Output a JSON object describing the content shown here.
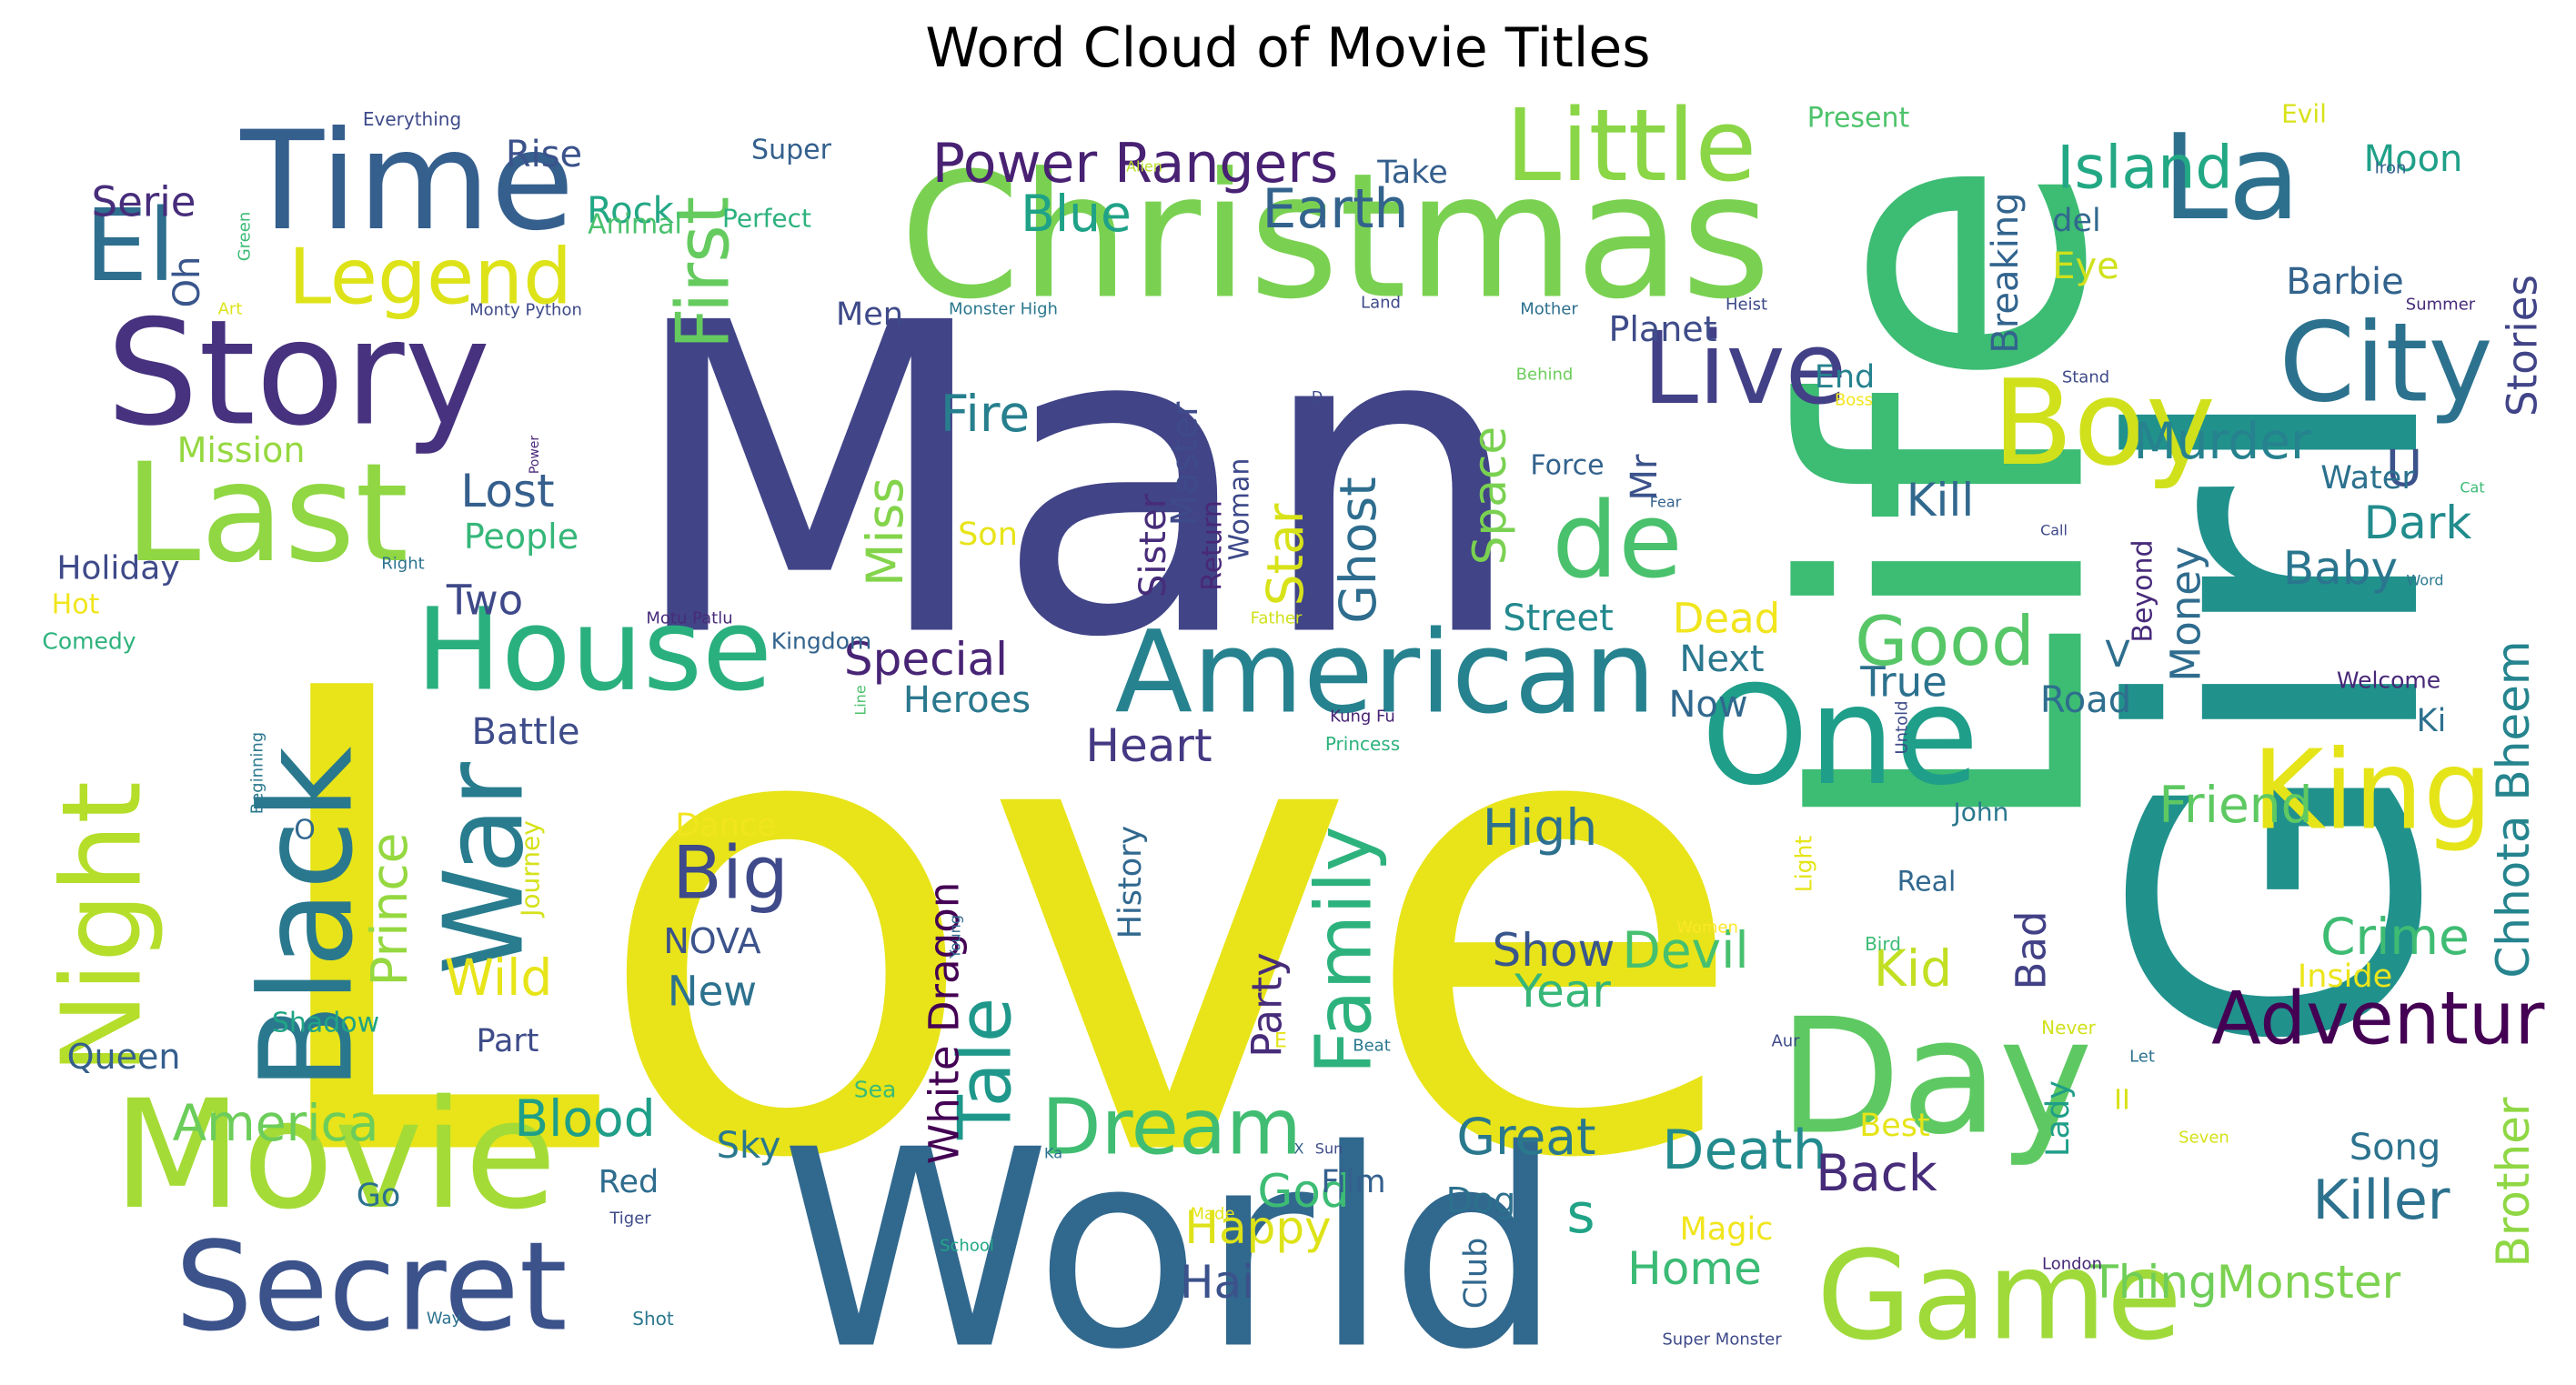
{
  "chart_data": {
    "type": "wordcloud",
    "title": "Word Cloud of Movie Titles",
    "words": [
      {
        "text": "Love",
        "color": "#e8e419"
      },
      {
        "text": "Man",
        "color": "#414487"
      },
      {
        "text": "Life",
        "color": "#3dbc74"
      },
      {
        "text": "Girl",
        "color": "#21918c"
      },
      {
        "text": "World",
        "color": "#31688e"
      },
      {
        "text": "Christmas",
        "color": "#7ad151"
      },
      {
        "text": "Time",
        "color": "#355f8d"
      },
      {
        "text": "Story",
        "color": "#46327e"
      },
      {
        "text": "Movie",
        "color": "#a5db36"
      },
      {
        "text": "Last",
        "color": "#90d743"
      },
      {
        "text": "Black",
        "color": "#2a788e"
      },
      {
        "text": "Secret",
        "color": "#3b528b"
      },
      {
        "text": "American",
        "color": "#26828e"
      },
      {
        "text": "House",
        "color": "#2ab07f"
      },
      {
        "text": "One",
        "color": "#1f9e89"
      },
      {
        "text": "Day",
        "color": "#5ec962"
      },
      {
        "text": "Game",
        "color": "#9fda3a"
      },
      {
        "text": "Little",
        "color": "#8bd646"
      },
      {
        "text": "La",
        "color": "#2d708e"
      },
      {
        "text": "City",
        "color": "#2c728e"
      },
      {
        "text": "Boy",
        "color": "#d0e11c"
      },
      {
        "text": "Night",
        "color": "#b5de2b"
      },
      {
        "text": "War",
        "color": "#287c8e"
      },
      {
        "text": "King",
        "color": "#e5e419"
      },
      {
        "text": "Live",
        "color": "#424086"
      },
      {
        "text": "El",
        "color": "#2e6e8e"
      },
      {
        "text": "de",
        "color": "#4ac16d"
      },
      {
        "text": "Legend",
        "color": "#dde318"
      },
      {
        "text": "Dream",
        "color": "#40bd72"
      },
      {
        "text": "Adventure",
        "color": "#440154"
      },
      {
        "text": "Family",
        "color": "#2db27d"
      },
      {
        "text": "Big",
        "color": "#3e4a89"
      },
      {
        "text": "Tale",
        "color": "#1f988b"
      },
      {
        "text": "Power Rangers",
        "color": "#482173"
      },
      {
        "text": "Good",
        "color": "#56c667"
      },
      {
        "text": "First",
        "color": "#65cb5e"
      },
      {
        "text": "Earth",
        "color": "#33638d"
      },
      {
        "text": "Blue",
        "color": "#1fa287"
      },
      {
        "text": "Island",
        "color": "#22a884"
      },
      {
        "text": "Chhota Bheem",
        "color": "#25848e"
      },
      {
        "text": "Death",
        "color": "#238a8d"
      },
      {
        "text": "Killer",
        "color": "#2c718e"
      },
      {
        "text": "Crime",
        "color": "#3fbc73"
      },
      {
        "text": "Brother",
        "color": "#8fd744"
      },
      {
        "text": "Blood",
        "color": "#1f9f88"
      },
      {
        "text": "Great",
        "color": "#2a788e"
      },
      {
        "text": "America",
        "color": "#6ccd5a"
      },
      {
        "text": "Prince",
        "color": "#95d840"
      },
      {
        "text": "Wild",
        "color": "#e7e419"
      },
      {
        "text": "Ghost",
        "color": "#2e6d8e"
      },
      {
        "text": "Star",
        "color": "#d8e219"
      },
      {
        "text": "Space",
        "color": "#7ad151"
      },
      {
        "text": "Fire",
        "color": "#277f8e"
      },
      {
        "text": "Miss",
        "color": "#84d44b"
      },
      {
        "text": "Murder",
        "color": "#26828e"
      },
      {
        "text": "Dark",
        "color": "#228c8d"
      },
      {
        "text": "Baby",
        "color": "#2a768e"
      },
      {
        "text": "Stories",
        "color": "#414487"
      },
      {
        "text": "Friend",
        "color": "#5ec962"
      },
      {
        "text": "Kid",
        "color": "#c2df23"
      },
      {
        "text": "Devil",
        "color": "#46c06f"
      },
      {
        "text": "Show",
        "color": "#39568c"
      },
      {
        "text": "Year",
        "color": "#36b677"
      },
      {
        "text": "High",
        "color": "#2d708e"
      },
      {
        "text": "Heart",
        "color": "#443983"
      },
      {
        "text": "Special",
        "color": "#482475"
      },
      {
        "text": "Back",
        "color": "#472c7a"
      },
      {
        "text": "Monster",
        "color": "#7cd250"
      },
      {
        "text": "Thing",
        "color": "#6ece58"
      },
      {
        "text": "Home",
        "color": "#3bbb75"
      },
      {
        "text": "Happy",
        "color": "#dde318"
      },
      {
        "text": "God",
        "color": "#3dbc74"
      },
      {
        "text": "Hai",
        "color": "#3b528b"
      },
      {
        "text": "Money",
        "color": "#2f6c8e"
      },
      {
        "text": "Bad",
        "color": "#424186"
      },
      {
        "text": "U",
        "color": "#3b528b"
      },
      {
        "text": "Kill",
        "color": "#31688e"
      },
      {
        "text": "Two",
        "color": "#3e4989"
      },
      {
        "text": "Lost",
        "color": "#355f8d"
      },
      {
        "text": "Moon",
        "color": "#1fa088"
      },
      {
        "text": "Rise",
        "color": "#3b528b"
      },
      {
        "text": "Rock",
        "color": "#22a785"
      },
      {
        "text": "Serie",
        "color": "#472d7b"
      },
      {
        "text": "Oh",
        "color": "#39568c"
      },
      {
        "text": "Mr",
        "color": "#3b528b"
      },
      {
        "text": "Dead",
        "color": "#f1e51d"
      },
      {
        "text": "Next",
        "color": "#2a788e"
      },
      {
        "text": "Now",
        "color": "#31688e"
      },
      {
        "text": "True",
        "color": "#2c718e"
      },
      {
        "text": "Road",
        "color": "#2e6e8e"
      },
      {
        "text": "Street",
        "color": "#23898e"
      },
      {
        "text": "Battle",
        "color": "#3e4c8a"
      },
      {
        "text": "Heroes",
        "color": "#2a788e"
      },
      {
        "text": "Planet",
        "color": "#3e4c8a"
      },
      {
        "text": "End",
        "color": "#26828e"
      },
      {
        "text": "Take",
        "color": "#355f8d"
      },
      {
        "text": "Barbie",
        "color": "#33638d"
      },
      {
        "text": "Eye",
        "color": "#d0e11c"
      },
      {
        "text": "Breaking",
        "color": "#32648e"
      },
      {
        "text": "del",
        "color": "#31688e"
      },
      {
        "text": "Water",
        "color": "#2c718e"
      },
      {
        "text": "Mission",
        "color": "#95d840"
      },
      {
        "text": "People",
        "color": "#35b779"
      },
      {
        "text": "Holiday",
        "color": "#3e4a89"
      },
      {
        "text": "Queen",
        "color": "#355f8d"
      },
      {
        "text": "Part",
        "color": "#3e4c8a"
      },
      {
        "text": "Red",
        "color": "#2e6d8e"
      },
      {
        "text": "Sky",
        "color": "#2a788e"
      },
      {
        "text": "Go",
        "color": "#2c728e"
      },
      {
        "text": "Film",
        "color": "#34608d"
      },
      {
        "text": "Dog",
        "color": "#2d708e"
      },
      {
        "text": "Club",
        "color": "#31688e"
      },
      {
        "text": "s",
        "color": "#20a386"
      },
      {
        "text": "Magic",
        "color": "#f1e51d"
      },
      {
        "text": "Best",
        "color": "#e5e419"
      },
      {
        "text": "Song",
        "color": "#2c728e"
      },
      {
        "text": "Lady",
        "color": "#1f9e89"
      },
      {
        "text": "Inside",
        "color": "#ece51b"
      },
      {
        "text": "Ki",
        "color": "#2d708e"
      },
      {
        "text": "Real",
        "color": "#31688e"
      },
      {
        "text": "John",
        "color": "#2a788e"
      },
      {
        "text": "NOVA",
        "color": "#3b528b"
      },
      {
        "text": "New",
        "color": "#2c728e"
      },
      {
        "text": "Dance",
        "color": "#f1e51d"
      },
      {
        "text": "Journey",
        "color": "#d5e21a"
      },
      {
        "text": "Party",
        "color": "#472c7a"
      },
      {
        "text": "History",
        "color": "#31688e"
      },
      {
        "text": "White Dragon",
        "color": "#440154"
      },
      {
        "text": "Sister",
        "color": "#472c7a"
      },
      {
        "text": "Master",
        "color": "#3e4a89"
      },
      {
        "text": "Return",
        "color": "#482878"
      },
      {
        "text": "Woman",
        "color": "#3e4989"
      },
      {
        "text": "Son",
        "color": "#e7e419"
      },
      {
        "text": "Men",
        "color": "#3e4a89"
      },
      {
        "text": "Perfect",
        "color": "#2db27d"
      },
      {
        "text": "Animal",
        "color": "#4ac16d"
      },
      {
        "text": "Super",
        "color": "#34608d"
      },
      {
        "text": "Present",
        "color": "#4ec36b"
      },
      {
        "text": "Evil",
        "color": "#d8e219"
      },
      {
        "text": "Force",
        "color": "#33638d"
      },
      {
        "text": "Beyond",
        "color": "#472a7a"
      },
      {
        "text": "V",
        "color": "#2e6e8e"
      },
      {
        "text": "Shadow",
        "color": "#20a486"
      },
      {
        "text": "Hot",
        "color": "#f1e51d"
      },
      {
        "text": "Comedy",
        "color": "#2db27d"
      },
      {
        "text": "O",
        "color": "#31688e"
      },
      {
        "text": "II",
        "color": "#d8e219"
      },
      {
        "text": "Kingdom",
        "color": "#33638d"
      },
      {
        "text": "Welcome",
        "color": "#472878"
      },
      {
        "text": "Everything",
        "color": "#3e4a89"
      },
      {
        "text": "Monty Python",
        "color": "#3e4a89"
      },
      {
        "text": "Alien",
        "color": "#b8de29"
      },
      {
        "text": "Green",
        "color": "#3bbb75"
      },
      {
        "text": "Art",
        "color": "#dde318"
      },
      {
        "text": "Monster High",
        "color": "#2a788e"
      },
      {
        "text": "Land",
        "color": "#3e4a89"
      },
      {
        "text": "Mother",
        "color": "#2d708e"
      },
      {
        "text": "Heist",
        "color": "#3e4a89"
      },
      {
        "text": "Iron",
        "color": "#34608d"
      },
      {
        "text": "Summer",
        "color": "#472c7a"
      },
      {
        "text": "Behind",
        "color": "#6ccd5a"
      },
      {
        "text": "Stand",
        "color": "#3e4989"
      },
      {
        "text": "Boss",
        "color": "#f1e51d"
      },
      {
        "text": "D",
        "color": "#3e4989"
      },
      {
        "text": "Fear",
        "color": "#34608d"
      },
      {
        "text": "Call",
        "color": "#3e4989"
      },
      {
        "text": "Cat",
        "color": "#3bbb75"
      },
      {
        "text": "Word",
        "color": "#2a788e"
      },
      {
        "text": "Right",
        "color": "#2c728e"
      },
      {
        "text": "Power",
        "color": "#482878"
      },
      {
        "text": "Motu Patlu",
        "color": "#472c7a"
      },
      {
        "text": "Father",
        "color": "#d0e11c"
      },
      {
        "text": "Kung Fu",
        "color": "#482475"
      },
      {
        "text": "Princess",
        "color": "#2db27d"
      },
      {
        "text": "Line",
        "color": "#4ac16d"
      },
      {
        "text": "Beginning",
        "color": "#2a788e"
      },
      {
        "text": "Untold",
        "color": "#3e4c8a"
      },
      {
        "text": "Light",
        "color": "#e5e419"
      },
      {
        "text": "Women",
        "color": "#fde725"
      },
      {
        "text": "Bird",
        "color": "#3bbb75"
      },
      {
        "text": "Young",
        "color": "#31688e"
      },
      {
        "text": "E",
        "color": "#e5e419"
      },
      {
        "text": "Beat",
        "color": "#2a788e"
      },
      {
        "text": "Sea",
        "color": "#3bbb75"
      },
      {
        "text": "Ka",
        "color": "#2c718e"
      },
      {
        "text": "X",
        "color": "#34608d"
      },
      {
        "text": "Sun",
        "color": "#3e4c8a"
      },
      {
        "text": "Made",
        "color": "#e5e419"
      },
      {
        "text": "School",
        "color": "#22a785"
      },
      {
        "text": "Tiger",
        "color": "#3e4c8a"
      },
      {
        "text": "Way",
        "color": "#2c728e"
      },
      {
        "text": "Shot",
        "color": "#2a788e"
      },
      {
        "text": "Super Monster",
        "color": "#3e4989"
      },
      {
        "text": "London",
        "color": "#472878"
      },
      {
        "text": "Never",
        "color": "#d0e11c"
      },
      {
        "text": "Aur",
        "color": "#3e4a89"
      },
      {
        "text": "Let",
        "color": "#2c728e"
      },
      {
        "text": "Seven",
        "color": "#d5e21a"
      }
    ]
  }
}
